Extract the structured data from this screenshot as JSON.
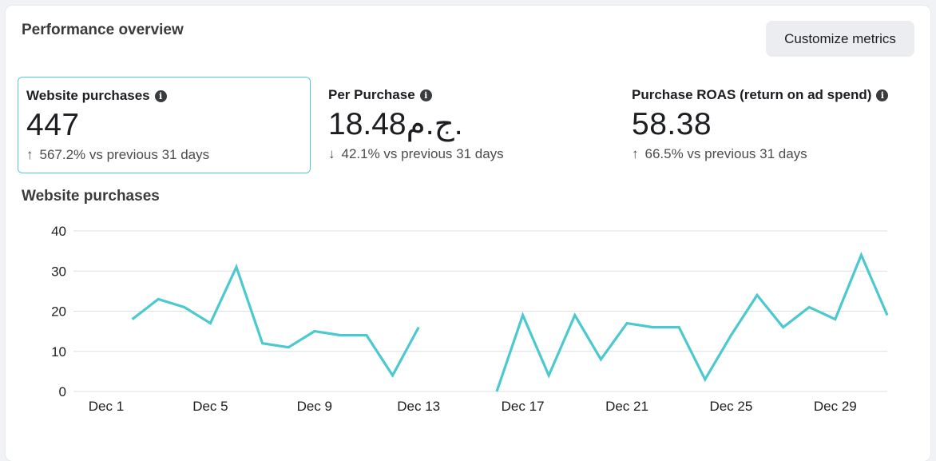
{
  "header": {
    "title": "Performance overview",
    "customize_label": "Customize metrics"
  },
  "metrics": [
    {
      "label": "Website purchases",
      "value": "447",
      "direction": "up",
      "arrow": "↑",
      "change": "567.2% vs previous 31 days",
      "selected": true
    },
    {
      "label": "Per Purchase",
      "value": "18.48ج.م.",
      "direction": "down",
      "arrow": "↓",
      "change": "42.1% vs previous 31 days",
      "selected": false
    },
    {
      "label": "Purchase ROAS (return on ad spend)",
      "value": "58.38",
      "direction": "up",
      "arrow": "↑",
      "change": "66.5% vs previous 31 days",
      "selected": false
    }
  ],
  "info_icon": {
    "icon": "info-icon",
    "glyph": "i"
  },
  "chart_title": "Website purchases",
  "colors": {
    "line": "#4cc9cf",
    "selected_border": "#5bc7d1",
    "grid": "#dddfe2"
  },
  "chart_data": {
    "type": "line",
    "title": "Website purchases",
    "xlabel": "",
    "ylabel": "",
    "ylim": [
      0,
      40
    ],
    "yticks": [
      0,
      10,
      20,
      30,
      40
    ],
    "grid": true,
    "xtick_labels": [
      "Dec 1",
      "Dec 5",
      "Dec 9",
      "Dec 13",
      "Dec 17",
      "Dec 21",
      "Dec 25",
      "Dec 29"
    ],
    "x": [
      "Dec 1",
      "Dec 2",
      "Dec 3",
      "Dec 4",
      "Dec 5",
      "Dec 6",
      "Dec 7",
      "Dec 8",
      "Dec 9",
      "Dec 10",
      "Dec 11",
      "Dec 12",
      "Dec 13",
      "Dec 14",
      "Dec 15",
      "Dec 16",
      "Dec 17",
      "Dec 18",
      "Dec 19",
      "Dec 20",
      "Dec 21",
      "Dec 22",
      "Dec 23",
      "Dec 24",
      "Dec 25",
      "Dec 26",
      "Dec 27",
      "Dec 28",
      "Dec 29",
      "Dec 30",
      "Dec 31"
    ],
    "series": [
      {
        "values": [
          null,
          18,
          23,
          21,
          17,
          31,
          12,
          11,
          15,
          14,
          14,
          4,
          16,
          null,
          null,
          0,
          19,
          4,
          19,
          8,
          17,
          16,
          16,
          3,
          14,
          24,
          16,
          21,
          18,
          34,
          19
        ]
      }
    ]
  }
}
